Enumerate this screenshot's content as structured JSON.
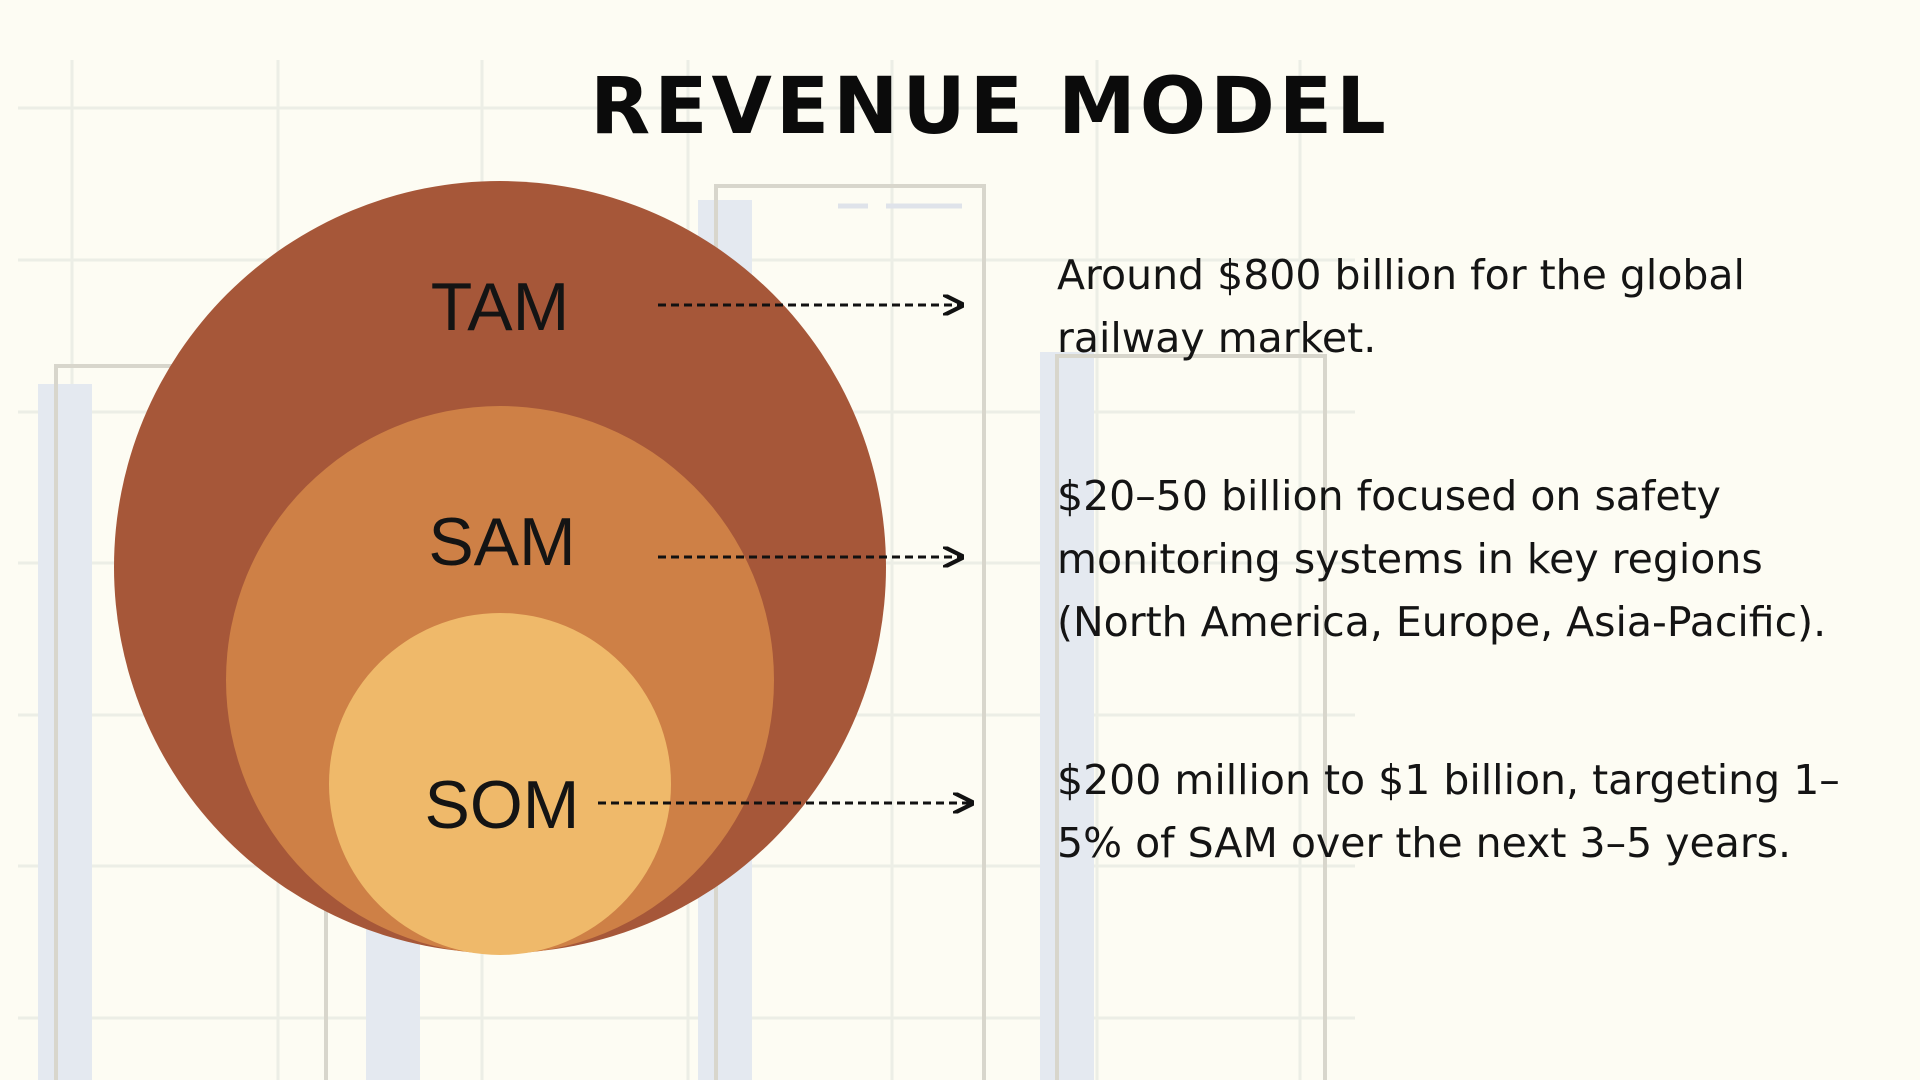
{
  "title": "REVENUE MODEL",
  "colors": {
    "background": "#fdfcf3",
    "tam": "#a65739",
    "sam": "#ce8046",
    "som": "#efb96a",
    "text": "#141414",
    "arrow": "#111111"
  },
  "markets": [
    {
      "label": "TAM",
      "description": "Around $800 billion for the global railway market."
    },
    {
      "label": "SAM",
      "description": "$20–50 billion focused on safety monitoring systems in key regions (North America, Europe, Asia-Pacific)."
    },
    {
      "label": "SOM",
      "description": "$200 million to $1 billion, targeting 1–5% of SAM over the next 3–5 years."
    }
  ]
}
